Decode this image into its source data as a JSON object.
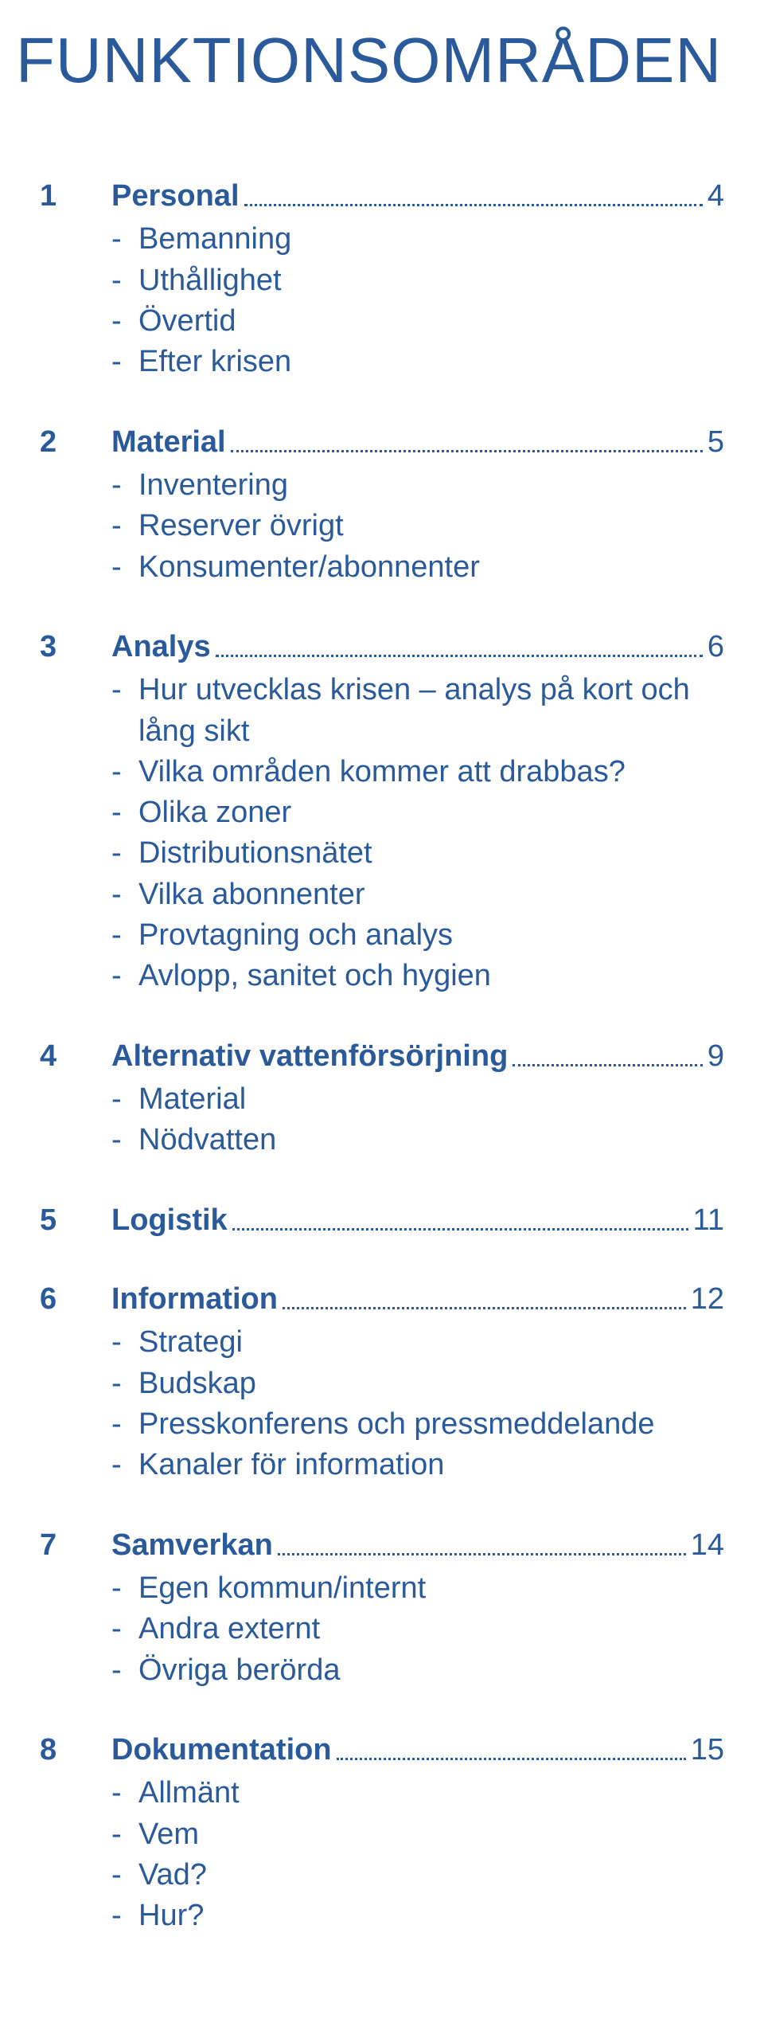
{
  "title": "FUNKTIONSOMRÅDEN",
  "colors": {
    "accent": "#2a5a9a",
    "background": "#ffffff"
  },
  "typography": {
    "title_fontsize_pt": 60,
    "section_fontsize_pt": 28,
    "sub_fontsize_pt": 28,
    "title_family": "Gill Sans",
    "body_family": "Gill Sans"
  },
  "sections": [
    {
      "num": "1",
      "title": "Personal",
      "page": "4",
      "items": [
        "Bemanning",
        "Uthållighet",
        "Övertid",
        "Efter krisen"
      ]
    },
    {
      "num": "2",
      "title": "Material",
      "page": "5",
      "items": [
        "Inventering",
        "Reserver övrigt",
        "Konsumenter/abonnenter"
      ]
    },
    {
      "num": "3",
      "title": "Analys",
      "page": "6",
      "items": [
        "Hur utvecklas krisen – analys på kort och lång sikt",
        "Vilka områden kommer att drabbas?",
        "Olika zoner",
        "Distributionsnätet",
        "Vilka abonnenter",
        "Provtagning och analys",
        "Avlopp, sanitet och hygien"
      ]
    },
    {
      "num": "4",
      "title": "Alternativ vattenförsörjning",
      "page": "9",
      "items": [
        "Material",
        "Nödvatten"
      ]
    },
    {
      "num": "5",
      "title": "Logistik",
      "page": "11",
      "items": []
    },
    {
      "num": "6",
      "title": "Information",
      "page": "12",
      "items": [
        "Strategi",
        "Budskap",
        "Presskonferens och pressmeddelande",
        "Kanaler för information"
      ]
    },
    {
      "num": "7",
      "title": "Samverkan",
      "page": "14",
      "items": [
        "Egen kommun/internt",
        "Andra externt",
        "Övriga berörda"
      ]
    },
    {
      "num": "8",
      "title": "Dokumentation",
      "page": "15",
      "items": [
        "Allmänt",
        "Vem",
        "Vad?",
        "Hur?"
      ]
    }
  ]
}
